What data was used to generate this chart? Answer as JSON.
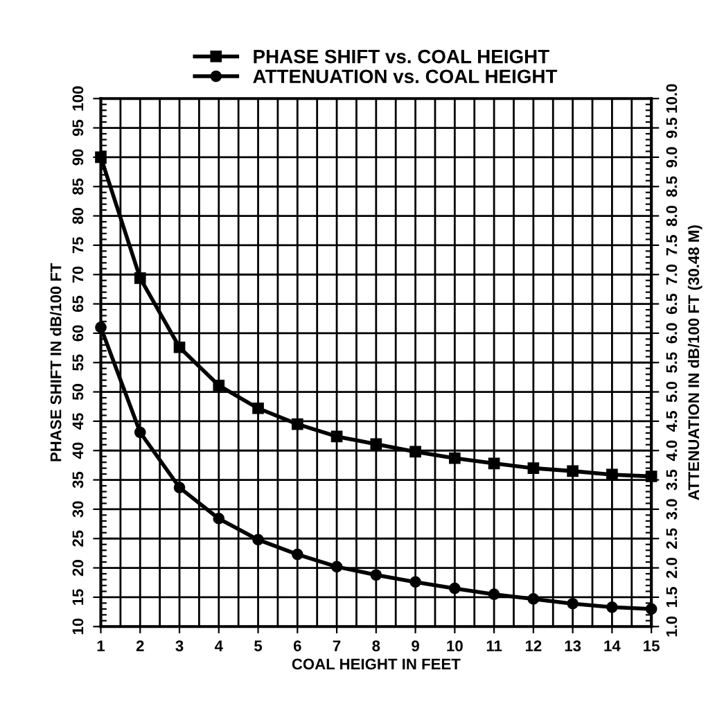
{
  "chart_data": {
    "type": "line",
    "xlabel": "COAL HEIGHT IN FEET",
    "ylabel": "PHASE SHIFT IN dB/100 FT",
    "y2label": "ATTENUATION IN dB/100 FT (30.48 M)",
    "x": [
      1,
      2,
      3,
      4,
      5,
      6,
      7,
      8,
      9,
      10,
      11,
      12,
      13,
      14,
      15
    ],
    "series": [
      {
        "name": "PHASE SHIFT vs. COAL HEIGHT",
        "color": "#000000",
        "marker": "square",
        "values": [
          90,
          69.4,
          57.6,
          51.1,
          47.2,
          44.5,
          42.4,
          41.1,
          39.8,
          38.7,
          37.8,
          37.0,
          36.5,
          35.9,
          35.6
        ]
      },
      {
        "name": "ATTENUATION vs. COAL HEIGHT",
        "color": "#000000",
        "marker": "circle",
        "axis": "y2",
        "values": [
          6.1,
          4.31,
          3.37,
          2.84,
          2.48,
          2.23,
          2.02,
          1.88,
          1.76,
          1.65,
          1.55,
          1.47,
          1.39,
          1.33,
          1.3
        ]
      }
    ],
    "xlim": [
      1,
      15
    ],
    "xticks": [
      1,
      2,
      3,
      4,
      5,
      6,
      7,
      8,
      9,
      10,
      11,
      12,
      13,
      14,
      15
    ],
    "ylim": [
      10,
      100
    ],
    "yticks": [
      10,
      15,
      20,
      25,
      30,
      35,
      40,
      45,
      50,
      55,
      60,
      65,
      70,
      75,
      80,
      85,
      90,
      95,
      100
    ],
    "y2lim": [
      1.0,
      10.0
    ],
    "y2ticks": [
      {
        "value": 1.0,
        "label": "1.0"
      },
      {
        "value": 1.5,
        "label": "1.5"
      },
      {
        "value": 2.0,
        "label": "2.0"
      },
      {
        "value": 2.5,
        "label": "2.5"
      },
      {
        "value": 3.0,
        "label": "3.0"
      },
      {
        "value": 3.5,
        "label": "3.5"
      },
      {
        "value": 4.0,
        "label": "4.0"
      },
      {
        "value": 4.5,
        "label": "4.5"
      },
      {
        "value": 5.0,
        "label": "5.0"
      },
      {
        "value": 5.5,
        "label": "5.5"
      },
      {
        "value": 6.0,
        "label": "6.0"
      },
      {
        "value": 6.5,
        "label": "6.5"
      },
      {
        "value": 7.0,
        "label": "7.0"
      },
      {
        "value": 7.5,
        "label": "7.5"
      },
      {
        "value": 8.0,
        "label": "8.0"
      },
      {
        "value": 8.5,
        "label": "8.5"
      },
      {
        "value": 9.0,
        "label": "9.0"
      },
      {
        "value": 9.5,
        "label": "9.5"
      },
      {
        "value": 10.0,
        "label": "10.0"
      }
    ],
    "grid": true,
    "legend": "top",
    "line_style": "solid"
  }
}
